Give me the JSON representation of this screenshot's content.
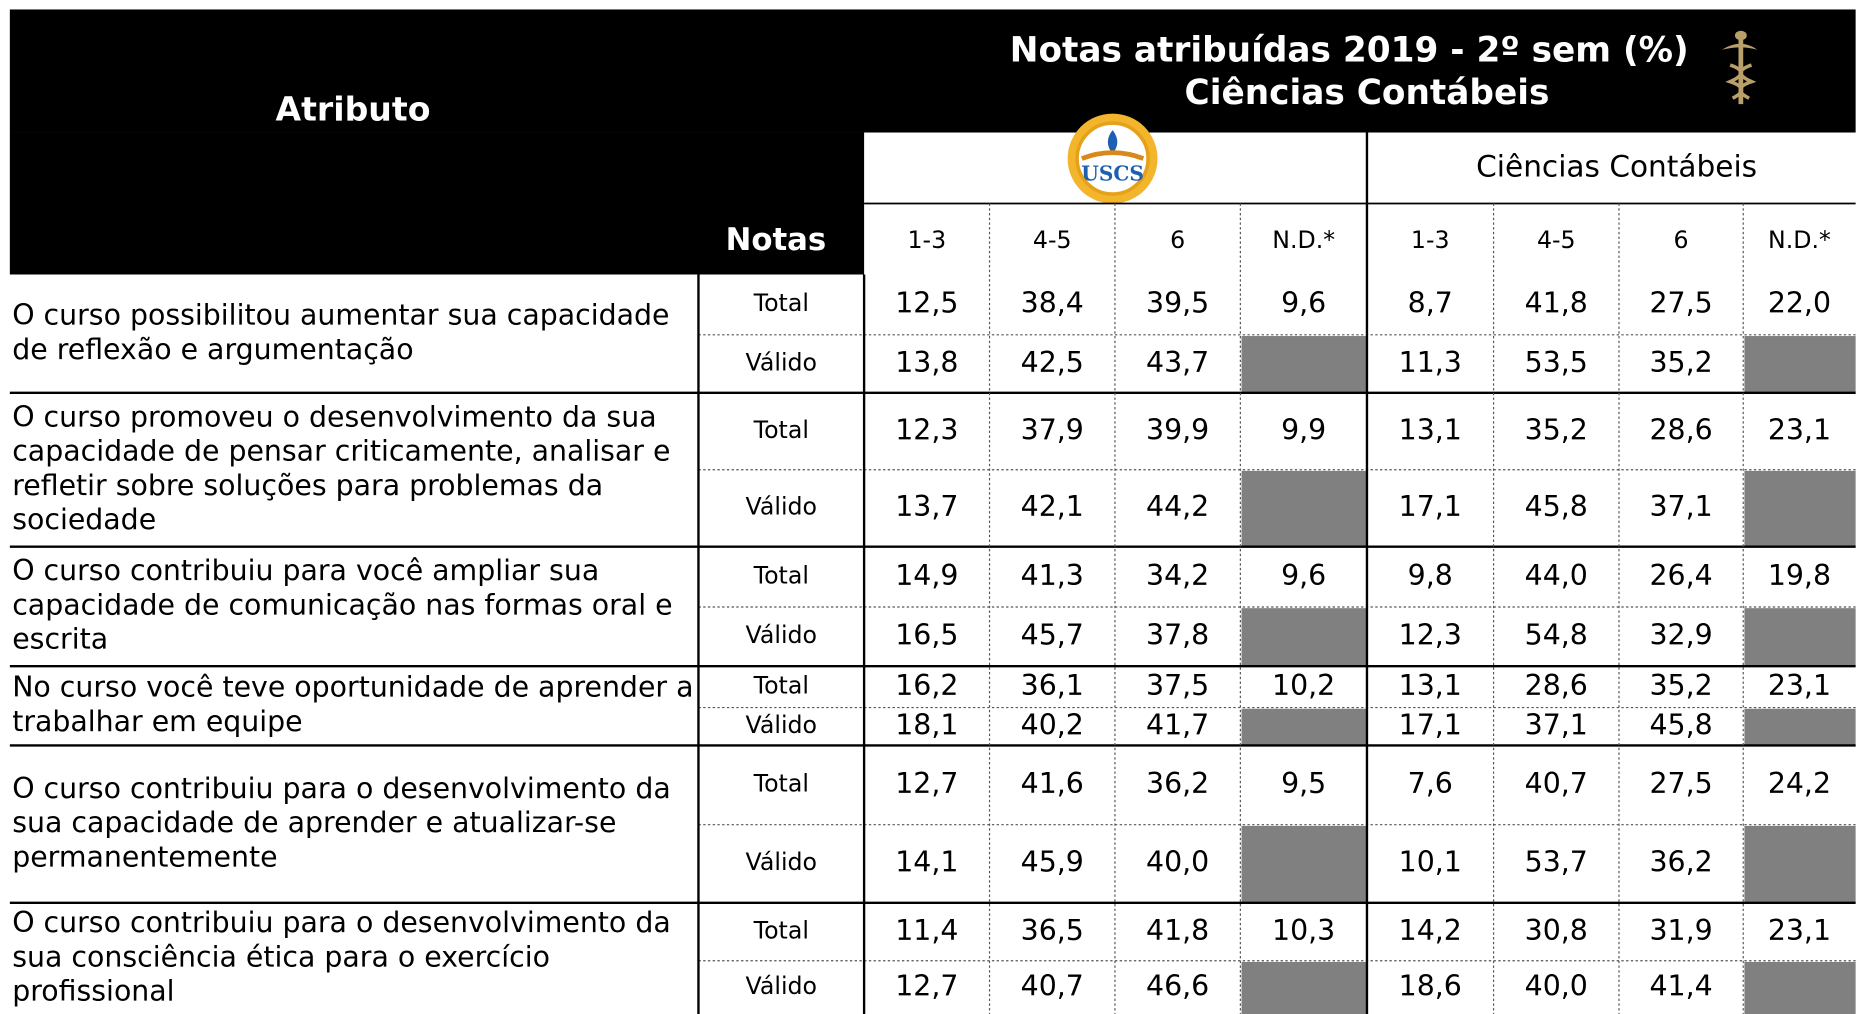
{
  "header": {
    "title_line1": "Notas atribuídas 2019 - 2º sem (%)",
    "title_line2": "Ciências Contábeis",
    "attribute": "Atributo",
    "notas": "Notas",
    "logo": "USCS",
    "group2": "Ciências Contábeis",
    "columns": [
      "1-3",
      "4-5",
      "6",
      "N.D.*"
    ]
  },
  "rows": [
    {
      "label": [
        "O curso possibilitou aumentar sua capacidade",
        "de reflexão e argumentação"
      ],
      "total_label": "Total",
      "valid_label": "Válido",
      "total": [
        "12,5",
        "38,4",
        "39,5",
        "9,6",
        "8,7",
        "41,8",
        "27,5",
        "22,0"
      ],
      "valid": [
        "13,8",
        "42,5",
        "43,7",
        "11,3",
        "53,5",
        "35,2"
      ]
    },
    {
      "label": [
        "O curso promoveu o desenvolvimento da sua",
        "capacidade de pensar criticamente, analisar e",
        "refletir sobre soluções para problemas da",
        "sociedade"
      ],
      "total_label": "Total",
      "valid_label": "Válido",
      "total": [
        "12,3",
        "37,9",
        "39,9",
        "9,9",
        "13,1",
        "35,2",
        "28,6",
        "23,1"
      ],
      "valid": [
        "13,7",
        "42,1",
        "44,2",
        "17,1",
        "45,8",
        "37,1"
      ]
    },
    {
      "label": [
        "O curso contribuiu para você ampliar sua",
        "capacidade de comunicação nas formas oral e",
        "escrita"
      ],
      "total_label": "Total",
      "valid_label": "Válido",
      "total": [
        "14,9",
        "41,3",
        "34,2",
        "9,6",
        "9,8",
        "44,0",
        "26,4",
        "19,8"
      ],
      "valid": [
        "16,5",
        "45,7",
        "37,8",
        "12,3",
        "54,8",
        "32,9"
      ]
    },
    {
      "label": [
        "No curso você teve oportunidade de aprender a",
        "trabalhar em equipe"
      ],
      "total_label": "Total",
      "valid_label": "Válido",
      "total": [
        "16,2",
        "36,1",
        "37,5",
        "10,2",
        "13,1",
        "28,6",
        "35,2",
        "23,1"
      ],
      "valid": [
        "18,1",
        "40,2",
        "41,7",
        "17,1",
        "37,1",
        "45,8"
      ]
    },
    {
      "label": [
        "O curso contribuiu para o desenvolvimento da",
        "sua capacidade de aprender e atualizar-se",
        "permanentemente"
      ],
      "total_label": "Total",
      "valid_label": "Válido",
      "total": [
        "12,7",
        "41,6",
        "36,2",
        "9,5",
        "7,6",
        "40,7",
        "27,5",
        "24,2"
      ],
      "valid": [
        "14,1",
        "45,9",
        "40,0",
        "10,1",
        "53,7",
        "36,2"
      ]
    },
    {
      "label": [
        "O curso contribuiu para o desenvolvimento da",
        "sua consciência ética para o exercício",
        "profissional"
      ],
      "total_label": "Total",
      "valid_label": "Válido",
      "total": [
        "11,4",
        "36,5",
        "41,8",
        "10,3",
        "14,2",
        "30,8",
        "31,9",
        "23,1"
      ],
      "valid": [
        "12,7",
        "40,7",
        "46,6",
        "18,6",
        "40,0",
        "41,4"
      ]
    }
  ]
}
